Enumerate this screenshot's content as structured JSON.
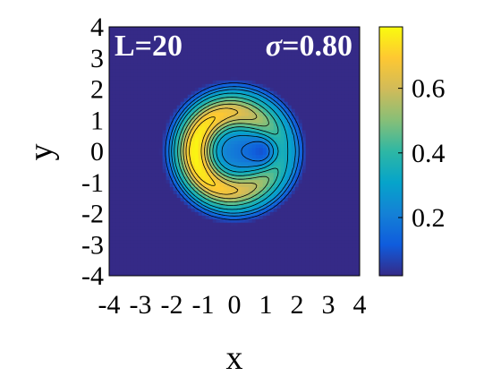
{
  "chart_data": {
    "type": "heatmap",
    "title": "",
    "xlabel": "x",
    "ylabel": "y",
    "xlim": [
      -4,
      4
    ],
    "ylim": [
      -4,
      4
    ],
    "x_ticks": [
      "-4",
      "-3",
      "-2",
      "-1",
      "0",
      "1",
      "2",
      "3",
      "4"
    ],
    "y_ticks": [
      "4",
      "3",
      "2",
      "1",
      "0",
      "-1",
      "-2",
      "-3",
      "-4"
    ],
    "annotations": {
      "left": "L=20",
      "right_symbol": "σ",
      "right_value": "=0.80"
    },
    "colorbar": {
      "range": [
        0.02,
        0.79
      ],
      "ticks": [
        {
          "value": 0.6,
          "label": "0.6"
        },
        {
          "value": 0.4,
          "label": "0.4"
        },
        {
          "value": 0.2,
          "label": "0.2"
        }
      ],
      "colormap": "parula"
    },
    "field": {
      "background_value": 0.02,
      "disk_radius": 2.35,
      "ring_peak_radius": 1.25,
      "ring_width": 0.55,
      "ring_peak_value": 0.78,
      "bright_side": "left",
      "inner_dip_center": [
        0.85,
        0.0
      ],
      "inner_dip_value": 0.1,
      "contour_levels": 9
    },
    "grid": false
  }
}
